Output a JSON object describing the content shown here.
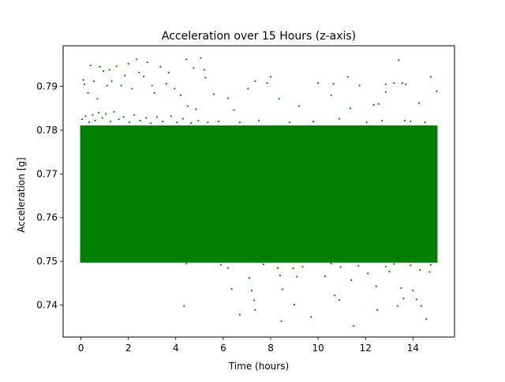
{
  "chart_data": {
    "type": "scatter",
    "title": "Acceleration over 15 Hours (z-axis)",
    "xlabel": "Time (hours)",
    "ylabel": "Acceleration [g]",
    "xlim": [
      -0.75,
      15.75
    ],
    "ylim": [
      0.7327,
      0.7993
    ],
    "xticks": [
      0,
      2,
      4,
      6,
      8,
      10,
      12,
      14
    ],
    "yticks": [
      0.74,
      0.75,
      0.76,
      0.77,
      0.78,
      0.79
    ],
    "grid": false,
    "legend": "none",
    "marker_color": "#008000",
    "dense_band": {
      "x_range": [
        0,
        15
      ],
      "y_range": [
        0.7497,
        0.7811
      ]
    },
    "series": [
      {
        "points_above": [
          [
            0.1,
            0.7915
          ],
          [
            0.15,
            0.7905
          ],
          [
            0.3,
            0.7885
          ],
          [
            0.4,
            0.7948
          ],
          [
            0.55,
            0.7912
          ],
          [
            0.7,
            0.7872
          ],
          [
            0.8,
            0.7945
          ],
          [
            0.95,
            0.7935
          ],
          [
            1.1,
            0.7902
          ],
          [
            1.2,
            0.7938
          ],
          [
            1.3,
            0.7912
          ],
          [
            1.5,
            0.7946
          ],
          [
            1.7,
            0.7902
          ],
          [
            1.85,
            0.7925
          ],
          [
            2.0,
            0.7952
          ],
          [
            2.15,
            0.7895
          ],
          [
            2.35,
            0.7962
          ],
          [
            2.45,
            0.7932
          ],
          [
            2.65,
            0.7923
          ],
          [
            2.8,
            0.7955
          ],
          [
            3.0,
            0.7902
          ],
          [
            3.1,
            0.7885
          ],
          [
            3.35,
            0.7945
          ],
          [
            3.6,
            0.7906
          ],
          [
            3.7,
            0.7932
          ],
          [
            3.95,
            0.7895
          ],
          [
            4.2,
            0.788
          ],
          [
            4.45,
            0.7962
          ],
          [
            4.5,
            0.7855
          ],
          [
            4.75,
            0.7942
          ],
          [
            4.85,
            0.7848
          ],
          [
            5.05,
            0.7965
          ],
          [
            5.2,
            0.7938
          ],
          [
            5.25,
            0.792
          ],
          [
            5.6,
            0.7882
          ],
          [
            6.2,
            0.7873
          ],
          [
            6.45,
            0.7846
          ],
          [
            7.05,
            0.7895
          ],
          [
            7.35,
            0.7912
          ],
          [
            7.85,
            0.7908
          ],
          [
            8.0,
            0.7922
          ],
          [
            8.35,
            0.7872
          ],
          [
            9.2,
            0.7855
          ],
          [
            10.0,
            0.7908
          ],
          [
            10.55,
            0.788
          ],
          [
            10.65,
            0.7906
          ],
          [
            11.25,
            0.7922
          ],
          [
            11.35,
            0.785
          ],
          [
            11.75,
            0.7902
          ],
          [
            12.35,
            0.7858
          ],
          [
            12.55,
            0.786
          ],
          [
            12.85,
            0.7905
          ],
          [
            12.85,
            0.7887
          ],
          [
            13.2,
            0.7908
          ],
          [
            13.4,
            0.796
          ],
          [
            13.55,
            0.7908
          ],
          [
            13.7,
            0.7905
          ],
          [
            13.65,
            0.7822
          ],
          [
            14.25,
            0.7862
          ],
          [
            14.75,
            0.7922
          ],
          [
            15.0,
            0.7889
          ],
          [
            0.05,
            0.7825
          ],
          [
            0.2,
            0.7832
          ],
          [
            0.35,
            0.7818
          ],
          [
            0.5,
            0.7835
          ],
          [
            0.6,
            0.7822
          ],
          [
            0.75,
            0.784
          ],
          [
            0.9,
            0.7828
          ],
          [
            1.05,
            0.7837
          ],
          [
            1.25,
            0.782
          ],
          [
            1.4,
            0.7842
          ],
          [
            1.6,
            0.7825
          ],
          [
            1.8,
            0.783
          ],
          [
            2.05,
            0.7818
          ],
          [
            2.25,
            0.7835
          ],
          [
            2.5,
            0.7822
          ],
          [
            2.75,
            0.7828
          ],
          [
            2.95,
            0.7816
          ],
          [
            3.2,
            0.783
          ],
          [
            3.45,
            0.782
          ],
          [
            3.8,
            0.7832
          ],
          [
            4.05,
            0.7818
          ],
          [
            4.3,
            0.7826
          ],
          [
            4.65,
            0.7816
          ],
          [
            4.95,
            0.7822
          ],
          [
            5.35,
            0.7818
          ],
          [
            5.8,
            0.782
          ],
          [
            6.7,
            0.7818
          ],
          [
            7.5,
            0.7822
          ],
          [
            8.8,
            0.7818
          ],
          [
            9.8,
            0.782
          ],
          [
            10.9,
            0.7826
          ],
          [
            12.05,
            0.7818
          ],
          [
            12.7,
            0.7822
          ],
          [
            13.9,
            0.782
          ],
          [
            14.5,
            0.7818
          ]
        ],
        "points_below": [
          [
            4.35,
            0.7398
          ],
          [
            4.45,
            0.7495
          ],
          [
            6.2,
            0.7485
          ],
          [
            6.35,
            0.7437
          ],
          [
            6.7,
            0.7378
          ],
          [
            7.1,
            0.7462
          ],
          [
            7.2,
            0.7433
          ],
          [
            7.3,
            0.7411
          ],
          [
            7.35,
            0.7389
          ],
          [
            7.7,
            0.7493
          ],
          [
            8.3,
            0.7485
          ],
          [
            8.4,
            0.7468
          ],
          [
            8.45,
            0.7363
          ],
          [
            8.5,
            0.7436
          ],
          [
            8.95,
            0.7484
          ],
          [
            9.0,
            0.7401
          ],
          [
            9.1,
            0.7465
          ],
          [
            9.35,
            0.7488
          ],
          [
            9.7,
            0.7373
          ],
          [
            10.3,
            0.7466
          ],
          [
            10.55,
            0.7495
          ],
          [
            10.7,
            0.7422
          ],
          [
            10.9,
            0.7412
          ],
          [
            10.95,
            0.7487
          ],
          [
            11.4,
            0.7457
          ],
          [
            11.5,
            0.7352
          ],
          [
            12.1,
            0.7472
          ],
          [
            12.45,
            0.7443
          ],
          [
            12.5,
            0.7389
          ],
          [
            12.85,
            0.7488
          ],
          [
            13.0,
            0.7477
          ],
          [
            13.35,
            0.7398
          ],
          [
            13.5,
            0.7439
          ],
          [
            13.6,
            0.7415
          ],
          [
            13.9,
            0.7491
          ],
          [
            14.0,
            0.7433
          ],
          [
            14.15,
            0.7413
          ],
          [
            14.35,
            0.7398
          ],
          [
            14.55,
            0.7368
          ],
          [
            14.7,
            0.7476
          ],
          [
            14.75,
            0.7492
          ],
          [
            14.3,
            0.748
          ],
          [
            5.9,
            0.7492
          ],
          [
            11.7,
            0.749
          ],
          [
            13.2,
            0.7494
          ]
        ]
      }
    ]
  }
}
